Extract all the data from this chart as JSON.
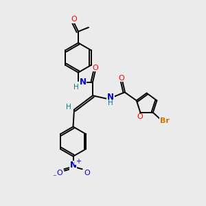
{
  "background_color": "#ebebeb",
  "bond_color": "#000000",
  "N_color": "#0000cd",
  "O_color": "#ff0000",
  "H_color": "#008080",
  "Br_color": "#cc7700",
  "lw": 1.4,
  "figsize": [
    3.0,
    3.0
  ],
  "dpi": 100,
  "xlim": [
    0,
    10
  ],
  "ylim": [
    0,
    10
  ]
}
